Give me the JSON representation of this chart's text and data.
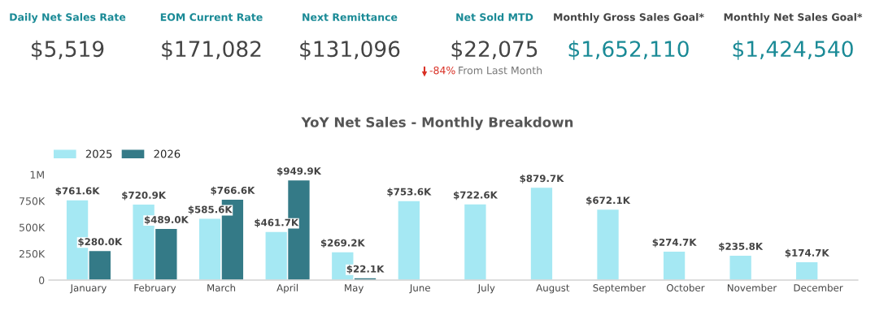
{
  "chart_data": [
    {
      "type": "other",
      "annotations": [
        "Daily Net Sales Rate",
        "$5,519",
        "EOM Current Rate",
        "$171,082",
        "Next Remittance",
        "$131,096",
        "Net Sold MTD",
        "$22,075",
        "Monthly Gross Sales Goal*",
        "$1,652,110",
        "Monthly Net Sales Goal*",
        "$1,424,540",
        "-84%",
        "From Last Month"
      ]
    },
    {
      "type": "bar",
      "title": "YoY Net Sales - Monthly Breakdown",
      "categories": [
        "January",
        "February",
        "March",
        "April",
        "May",
        "June",
        "July",
        "August",
        "September",
        "October",
        "November",
        "December"
      ],
      "series": [
        {
          "name": "2025",
          "color": "#a5e8f3",
          "values": [
            761600,
            720900,
            585600,
            461700,
            269200,
            753600,
            722600,
            879700,
            672100,
            274700,
            235800,
            174700
          ],
          "value_labels": [
            "$761.6K",
            "$720.9K",
            "$585.6K",
            "$461.7K",
            "$269.2K",
            "$753.6K",
            "$722.6K",
            "$879.7K",
            "$672.1K",
            "$274.7K",
            "$235.8K",
            "$174.7K"
          ]
        },
        {
          "name": "2026",
          "color": "#347a87",
          "values": [
            280000,
            489000,
            766600,
            949900,
            22100,
            null,
            null,
            null,
            null,
            null,
            null,
            null
          ],
          "value_labels": [
            "$280.0K",
            "$489.0K",
            "$766.6K",
            "$949.9K",
            "$22.1K",
            null,
            null,
            null,
            null,
            null,
            null,
            null
          ]
        }
      ],
      "ylim": [
        0,
        1000000
      ],
      "yticks": [
        0,
        {
          "value": 250000,
          "label": "250K"
        },
        {
          "value": 500000,
          "label": "500K"
        },
        {
          "value": 750000,
          "label": "750K"
        },
        {
          "value": 1000000,
          "label": "1M"
        }
      ],
      "grid": false,
      "legend": "top left"
    }
  ]
}
